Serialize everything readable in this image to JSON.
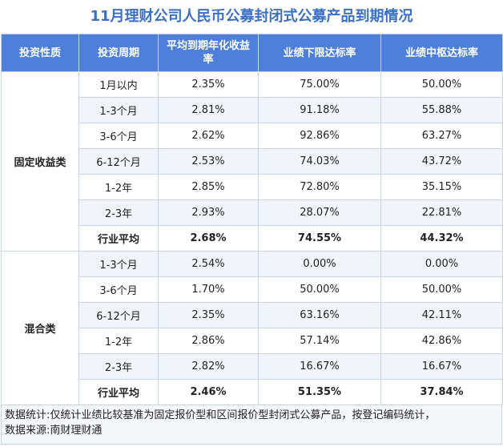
{
  "title": "11月理财公司人民币公募封闭式公募产品到期情况",
  "headers": [
    "投资性质",
    "投资周期",
    "平均到期年化收益率",
    "业绩下限达标率",
    "业绩中枢达标率"
  ],
  "groups": [
    {
      "name": "固定收益类",
      "rows": [
        {
          "period": "1月以内",
          "yield": "2.35%",
          "lower": "75.00%",
          "mid": "50.00%"
        },
        {
          "period": "1-3个月",
          "yield": "2.81%",
          "lower": "91.18%",
          "mid": "55.88%"
        },
        {
          "period": "3-6个月",
          "yield": "2.62%",
          "lower": "92.86%",
          "mid": "63.27%"
        },
        {
          "period": "6-12个月",
          "yield": "2.53%",
          "lower": "74.03%",
          "mid": "43.72%"
        },
        {
          "period": "1-2年",
          "yield": "2.85%",
          "lower": "72.80%",
          "mid": "35.15%"
        },
        {
          "period": "2-3年",
          "yield": "2.93%",
          "lower": "28.07%",
          "mid": "22.81%"
        },
        {
          "period": "行业平均",
          "yield": "2.68%",
          "lower": "74.55%",
          "mid": "44.32%"
        }
      ]
    },
    {
      "name": "混合类",
      "rows": [
        {
          "period": "1-3个月",
          "yield": "2.54%",
          "lower": "0.00%",
          "mid": "0.00%"
        },
        {
          "period": "3-6个月",
          "yield": "1.70%",
          "lower": "50.00%",
          "mid": "50.00%"
        },
        {
          "period": "6-12个月",
          "yield": "2.35%",
          "lower": "63.16%",
          "mid": "42.11%"
        },
        {
          "period": "1-2年",
          "yield": "2.86%",
          "lower": "57.14%",
          "mid": "42.86%"
        },
        {
          "period": "2-3年",
          "yield": "2.82%",
          "lower": "16.67%",
          "mid": "16.67%"
        },
        {
          "period": "行业平均",
          "yield": "2.46%",
          "lower": "51.35%",
          "mid": "37.84%"
        }
      ]
    }
  ],
  "footnote": {
    "line1": "数据统计:仅统计业绩比较基准为固定报价型和区间报价型封闭式公募产品，按登记编码统计，",
    "line2": "数据来源:南财理财通"
  }
}
